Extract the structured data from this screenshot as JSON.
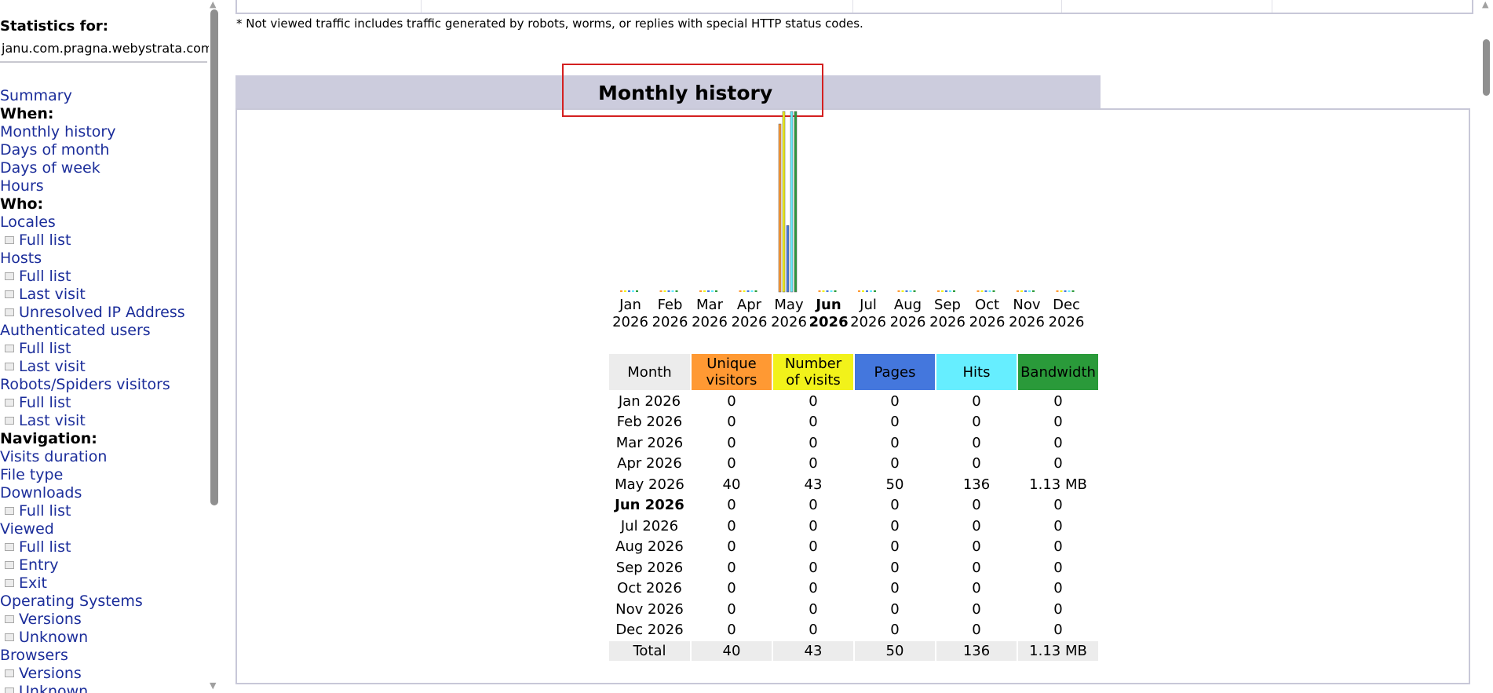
{
  "sidebar": {
    "statistics_for": "Statistics for:",
    "domain": "janu.com.pragna.webystrata.com",
    "menu": [
      {
        "kind": "link",
        "label": "Summary"
      },
      {
        "kind": "head",
        "label": "When:"
      },
      {
        "kind": "link",
        "label": "Monthly history"
      },
      {
        "kind": "link",
        "label": "Days of month"
      },
      {
        "kind": "link",
        "label": "Days of week"
      },
      {
        "kind": "link",
        "label": "Hours"
      },
      {
        "kind": "head",
        "label": "Who:"
      },
      {
        "kind": "link",
        "label": "Locales"
      },
      {
        "kind": "sub",
        "label": "Full list"
      },
      {
        "kind": "link",
        "label": "Hosts"
      },
      {
        "kind": "sub",
        "label": "Full list"
      },
      {
        "kind": "sub",
        "label": "Last visit"
      },
      {
        "kind": "sub",
        "label": "Unresolved IP Address"
      },
      {
        "kind": "link",
        "label": "Authenticated users"
      },
      {
        "kind": "sub",
        "label": "Full list"
      },
      {
        "kind": "sub",
        "label": "Last visit"
      },
      {
        "kind": "link",
        "label": "Robots/Spiders visitors"
      },
      {
        "kind": "sub",
        "label": "Full list"
      },
      {
        "kind": "sub",
        "label": "Last visit"
      },
      {
        "kind": "head",
        "label": "Navigation:"
      },
      {
        "kind": "link",
        "label": "Visits duration"
      },
      {
        "kind": "link",
        "label": "File type"
      },
      {
        "kind": "link",
        "label": "Downloads"
      },
      {
        "kind": "sub",
        "label": "Full list"
      },
      {
        "kind": "link",
        "label": "Viewed"
      },
      {
        "kind": "sub",
        "label": "Full list"
      },
      {
        "kind": "sub",
        "label": "Entry"
      },
      {
        "kind": "sub",
        "label": "Exit"
      },
      {
        "kind": "link",
        "label": "Operating Systems"
      },
      {
        "kind": "sub",
        "label": "Versions"
      },
      {
        "kind": "sub",
        "label": "Unknown"
      },
      {
        "kind": "link",
        "label": "Browsers"
      },
      {
        "kind": "sub",
        "label": "Versions"
      },
      {
        "kind": "sub",
        "label": "Unknown"
      }
    ]
  },
  "main": {
    "footnote": "* Not viewed traffic includes traffic generated by robots, worms, or replies with special HTTP status codes.",
    "section_title": "Monthly history",
    "columns": [
      "Month",
      "Unique visitors",
      "Number of visits",
      "Pages",
      "Hits",
      "Bandwidth"
    ],
    "rows": [
      {
        "month": "Jan 2026",
        "uniq": "0",
        "visits": "0",
        "pages": "0",
        "hits": "0",
        "bw": "0"
      },
      {
        "month": "Feb 2026",
        "uniq": "0",
        "visits": "0",
        "pages": "0",
        "hits": "0",
        "bw": "0"
      },
      {
        "month": "Mar 2026",
        "uniq": "0",
        "visits": "0",
        "pages": "0",
        "hits": "0",
        "bw": "0"
      },
      {
        "month": "Apr 2026",
        "uniq": "0",
        "visits": "0",
        "pages": "0",
        "hits": "0",
        "bw": "0"
      },
      {
        "month": "May 2026",
        "uniq": "40",
        "visits": "43",
        "pages": "50",
        "hits": "136",
        "bw": "1.13 MB"
      },
      {
        "month": "Jun 2026",
        "uniq": "0",
        "visits": "0",
        "pages": "0",
        "hits": "0",
        "bw": "0",
        "current": true
      },
      {
        "month": "Jul 2026",
        "uniq": "0",
        "visits": "0",
        "pages": "0",
        "hits": "0",
        "bw": "0"
      },
      {
        "month": "Aug 2026",
        "uniq": "0",
        "visits": "0",
        "pages": "0",
        "hits": "0",
        "bw": "0"
      },
      {
        "month": "Sep 2026",
        "uniq": "0",
        "visits": "0",
        "pages": "0",
        "hits": "0",
        "bw": "0"
      },
      {
        "month": "Oct 2026",
        "uniq": "0",
        "visits": "0",
        "pages": "0",
        "hits": "0",
        "bw": "0"
      },
      {
        "month": "Nov 2026",
        "uniq": "0",
        "visits": "0",
        "pages": "0",
        "hits": "0",
        "bw": "0"
      },
      {
        "month": "Dec 2026",
        "uniq": "0",
        "visits": "0",
        "pages": "0",
        "hits": "0",
        "bw": "0"
      }
    ],
    "total": {
      "label": "Total",
      "uniq": "40",
      "visits": "43",
      "pages": "50",
      "hits": "136",
      "bw": "1.13 MB"
    }
  },
  "chart_data": {
    "type": "bar",
    "categories": [
      "Jan 2026",
      "Feb 2026",
      "Mar 2026",
      "Apr 2026",
      "May 2026",
      "Jun 2026",
      "Jul 2026",
      "Aug 2026",
      "Sep 2026",
      "Oct 2026",
      "Nov 2026",
      "Dec 2026"
    ],
    "category_labels": [
      [
        "Jan",
        "2026"
      ],
      [
        "Feb",
        "2026"
      ],
      [
        "Mar",
        "2026"
      ],
      [
        "Apr",
        "2026"
      ],
      [
        "May",
        "2026"
      ],
      [
        "Jun",
        "2026"
      ],
      [
        "Jul",
        "2026"
      ],
      [
        "Aug",
        "2026"
      ],
      [
        "Sep",
        "2026"
      ],
      [
        "Oct",
        "2026"
      ],
      [
        "Nov",
        "2026"
      ],
      [
        "Dec",
        "2026"
      ]
    ],
    "current_category": "Jun 2026",
    "series": [
      {
        "name": "Unique visitors",
        "color": "#ff9933",
        "values": [
          0,
          0,
          0,
          0,
          40,
          0,
          0,
          0,
          0,
          0,
          0,
          0
        ]
      },
      {
        "name": "Number of visits",
        "color": "#f2f21a",
        "values": [
          0,
          0,
          0,
          0,
          43,
          0,
          0,
          0,
          0,
          0,
          0,
          0
        ]
      },
      {
        "name": "Pages",
        "color": "#4477dd",
        "values": [
          0,
          0,
          0,
          0,
          50,
          0,
          0,
          0,
          0,
          0,
          0,
          0
        ]
      },
      {
        "name": "Hits",
        "color": "#66eeff",
        "values": [
          0,
          0,
          0,
          0,
          136,
          0,
          0,
          0,
          0,
          0,
          0,
          0
        ]
      },
      {
        "name": "Bandwidth (MB)",
        "color": "#2a9a3a",
        "values": [
          0,
          0,
          0,
          0,
          1.13,
          0,
          0,
          0,
          0,
          0,
          0,
          0
        ]
      }
    ],
    "xlabel": "",
    "ylabel": ""
  }
}
